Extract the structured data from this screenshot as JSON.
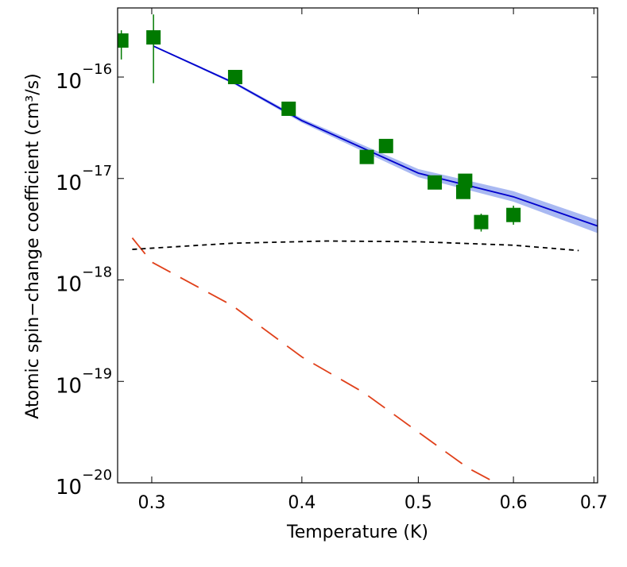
{
  "chart_data": {
    "type": "scatter",
    "x_label": "Temperature (K)",
    "y_label": "Atomic spin−change coefficient (cm³/s)",
    "x_log": true,
    "y_log": true,
    "xlim": [
      0.281,
      0.705
    ],
    "ylim": [
      1e-20,
      4.8e-16
    ],
    "xticks": [
      0.3,
      0.4,
      0.5,
      0.6,
      0.7
    ],
    "yticks": [
      {
        "value": 1e-16,
        "label": "10",
        "exponent": "−16"
      },
      {
        "value": 1e-17,
        "label": "10",
        "exponent": "−17"
      },
      {
        "value": 1e-18,
        "label": "10",
        "exponent": "−18"
      },
      {
        "value": 1e-19,
        "label": "10",
        "exponent": "−19"
      },
      {
        "value": 1e-20,
        "label": "10",
        "exponent": "−20"
      }
    ],
    "series": [
      {
        "type": "line",
        "color": "#e0401a",
        "dash": "26 14",
        "x": [
          0.289,
          0.3,
          0.35,
          0.4,
          0.45,
          0.5,
          0.55,
          0.58
        ],
        "values": [
          2.6e-18,
          1.5e-18,
          5.6e-19,
          1.74e-19,
          7.8e-20,
          3.16e-20,
          1.4e-20,
          1e-20
        ]
      },
      {
        "type": "line",
        "color": "#000000",
        "dash": "6 5",
        "x": [
          0.289,
          0.35,
          0.42,
          0.5,
          0.6,
          0.68
        ],
        "values": [
          2e-18,
          2.3e-18,
          2.42e-18,
          2.38e-18,
          2.2e-18,
          1.95e-18
        ]
      },
      {
        "type": "line",
        "color": "#0000cc",
        "band_color": "#a9b9f2",
        "x": [
          0.301,
          0.352,
          0.4,
          0.5,
          0.6,
          0.705
        ],
        "values": [
          2.02e-16,
          8.66e-17,
          3.72e-17,
          1.13e-17,
          6.6e-18,
          3.4e-18
        ],
        "band_low": [
          1.98e-16,
          8.4e-17,
          3.55e-17,
          1.03e-17,
          5.9e-18,
          2.9e-18
        ],
        "band_high": [
          2.05e-16,
          8.9e-17,
          3.9e-17,
          1.24e-17,
          7.5e-18,
          3.9e-18
        ]
      },
      {
        "type": "scatter",
        "color": "#007a00",
        "x": [
          0.283,
          0.301,
          0.352,
          0.39,
          0.453,
          0.47,
          0.516,
          0.547,
          0.545,
          0.564,
          0.6
        ],
        "values": [
          2.29e-16,
          2.46e-16,
          1e-16,
          4.87e-17,
          1.63e-17,
          2.09e-17,
          9.14e-18,
          9.5e-18,
          7.37e-18,
          3.72e-18,
          4.37e-18
        ],
        "y_low": [
          1.49e-16,
          8.7e-17,
          9e-17,
          4.4e-17,
          1.45e-17,
          1.9e-17,
          8.2e-18,
          8.6e-18,
          6.5e-18,
          3e-18,
          3.5e-18
        ],
        "y_high": [
          2.89e-16,
          4.14e-16,
          1.1e-16,
          5.3e-17,
          1.8e-17,
          2.3e-17,
          1.02e-17,
          1.05e-17,
          8.2e-18,
          4.5e-18,
          5.4e-18
        ]
      }
    ]
  }
}
